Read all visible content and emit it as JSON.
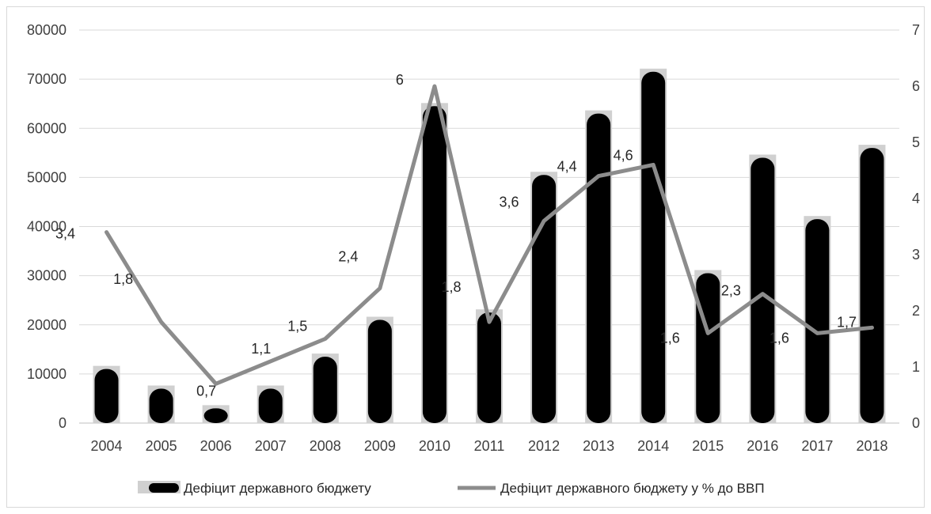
{
  "chart_data": {
    "type": "bar",
    "categories": [
      "2004",
      "2005",
      "2006",
      "2007",
      "2008",
      "2009",
      "2010",
      "2011",
      "2012",
      "2013",
      "2014",
      "2015",
      "2016",
      "2017",
      "2018"
    ],
    "series": [
      {
        "name": "Дефіцит державного бюджету",
        "type": "bar",
        "axis": "left",
        "color": "#000000",
        "values": [
          11000,
          7000,
          3000,
          7000,
          13500,
          21000,
          64500,
          22500,
          50500,
          63000,
          71500,
          30500,
          54000,
          41500,
          56000
        ]
      },
      {
        "name": "Дефіцит державного бюджету у % до ВВП",
        "type": "line",
        "axis": "right",
        "color": "#8c8c8c",
        "values": [
          3.4,
          1.8,
          0.7,
          1.1,
          1.5,
          2.4,
          6,
          1.8,
          3.6,
          4.4,
          4.6,
          1.6,
          2.3,
          1.6,
          1.7
        ],
        "data_labels": [
          "3,4",
          "1,8",
          "0,7",
          "1,1",
          "1,5",
          "2,4",
          "6",
          "1,8",
          "3,6",
          "4,4",
          "4,6",
          "1,6",
          "2,3",
          "1,6",
          "1,7"
        ]
      }
    ],
    "y_left": {
      "ylim": [
        0,
        80000
      ],
      "ticks": [
        0,
        10000,
        20000,
        30000,
        40000,
        50000,
        60000,
        70000,
        80000
      ],
      "tick_labels": [
        "0",
        "10000",
        "20000",
        "30000",
        "40000",
        "50000",
        "60000",
        "70000",
        "80000"
      ]
    },
    "y_right": {
      "ylim": [
        0,
        7
      ],
      "ticks": [
        0,
        1,
        2,
        3,
        4,
        5,
        6,
        7
      ],
      "tick_labels": [
        "0",
        "1",
        "2",
        "3",
        "4",
        "5",
        "6",
        "7"
      ]
    },
    "grid": true,
    "legend": "bottom",
    "title": "",
    "xlabel": "",
    "ylabel": ""
  }
}
